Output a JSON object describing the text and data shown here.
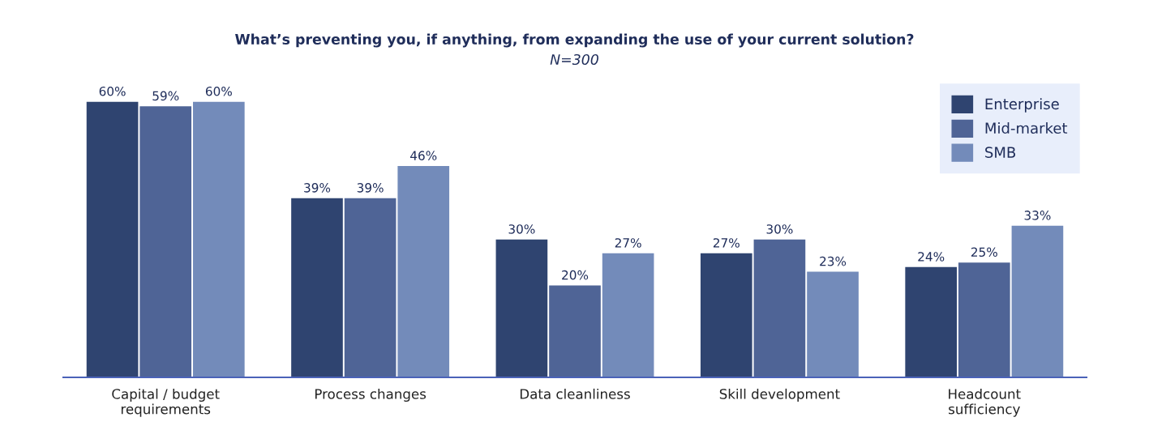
{
  "chart_data": {
    "type": "bar",
    "title": "What’s preventing you, if anything, from expanding the use of your current solution?",
    "subtitle": "N=300",
    "categories": [
      "Capital / budget\nrequirements",
      "Process changes",
      "Data cleanliness",
      "Skill development",
      "Headcount\nsufficiency"
    ],
    "series": [
      {
        "name": "Enterprise",
        "color": "#2f4470",
        "values": [
          60,
          39,
          30,
          27,
          24
        ],
        "value_labels": [
          "60%",
          "39%",
          "30%",
          "27%",
          "24%"
        ]
      },
      {
        "name": "Mid-market",
        "color": "#4f6496",
        "values": [
          59,
          39,
          20,
          30,
          25
        ],
        "value_labels": [
          "59%",
          "39%",
          "20%",
          "30%",
          "25%"
        ]
      },
      {
        "name": "SMB",
        "color": "#738bba",
        "values": [
          60,
          46,
          27,
          23,
          33
        ],
        "value_labels": [
          "60%",
          "46%",
          "27%",
          "23%",
          "33%"
        ]
      }
    ],
    "legend": "top right",
    "grid": false
  }
}
